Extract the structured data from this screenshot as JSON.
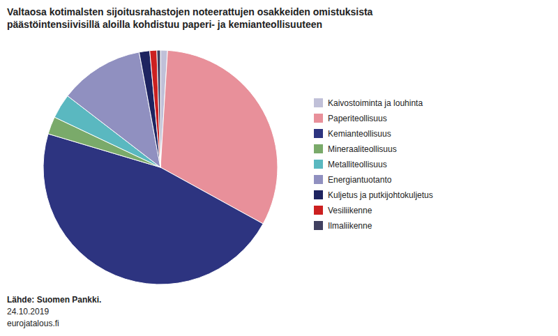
{
  "chart_data": {
    "type": "pie",
    "title": "Valtaosa kotimalsten sijoitusrahastojen noteerattujen osakkeiden omistuksista\npäästöintensiivisillä aloilla kohdistuu paperi- ja kemianteollisuuteen",
    "categories": [
      "Kaivostoiminta ja louhinta",
      "Paperiteollisuus",
      "Kemianteollisuus",
      "Mineraaliteollisuus",
      "Metalliteollisuus",
      "Energiantuotanto",
      "Kuljetus ja putkijohtokuljetus",
      "Vesiliikenne",
      "Ilmaliikenne"
    ],
    "values": [
      1.0,
      33.0,
      48.0,
      2.5,
      3.5,
      12.0,
      1.5,
      1.0,
      0.5
    ],
    "colors": [
      "#c0c0d8",
      "#e8909a",
      "#2d3480",
      "#7aaa6a",
      "#5ab8c0",
      "#9090c0",
      "#1e2460",
      "#cc2020",
      "#404060"
    ],
    "legend": "right",
    "annotations": [
      "Lähde: Suomen Pankki.",
      "24.10.2019",
      "eurojatalous.fi"
    ]
  }
}
